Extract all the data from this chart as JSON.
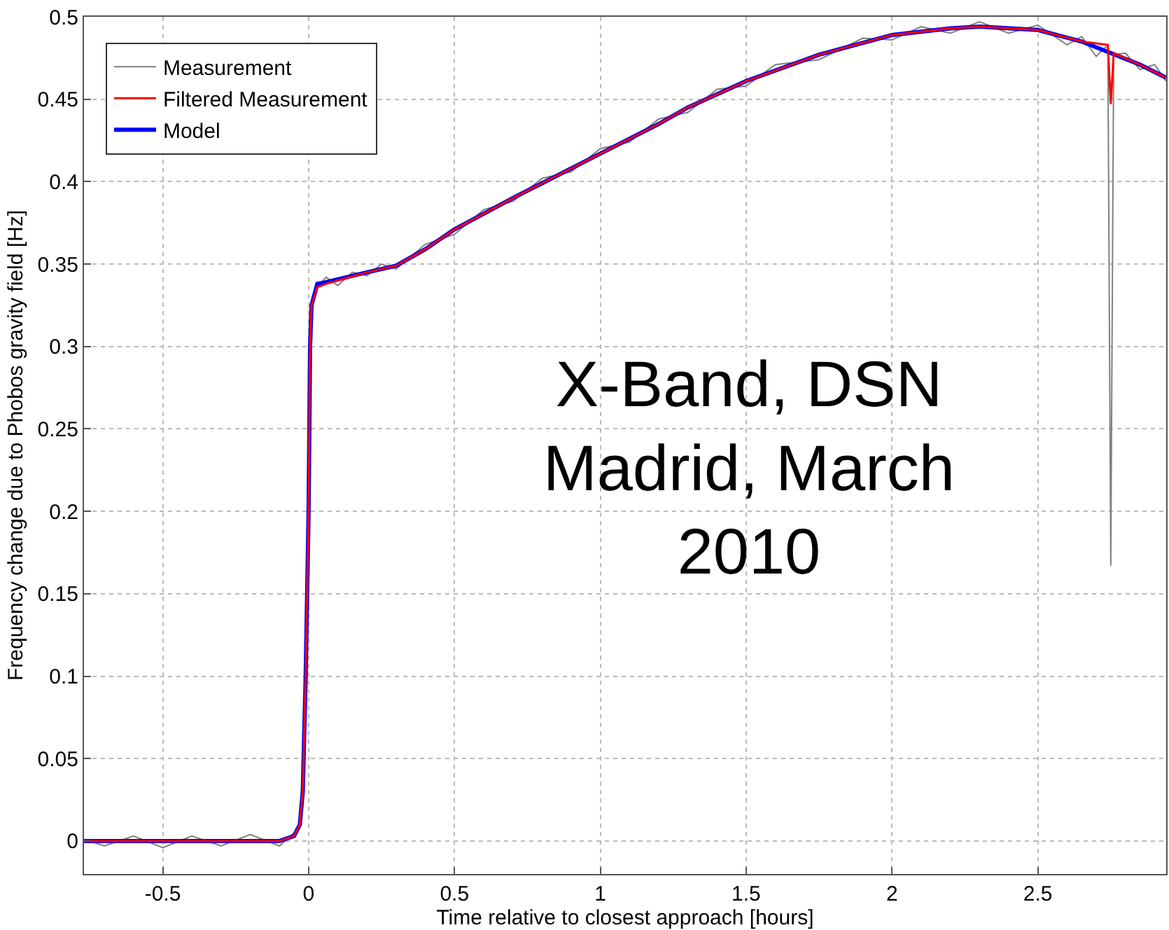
{
  "chart_data": {
    "type": "line",
    "xlabel": "Time relative to closest approach [hours]",
    "ylabel": "Frequency change due to Phobos gravity field [Hz]",
    "xlim": [
      -0.77,
      2.94
    ],
    "ylim": [
      -0.02,
      0.5
    ],
    "xticks": [
      -0.5,
      0,
      0.5,
      1,
      1.5,
      2,
      2.5
    ],
    "yticks": [
      0,
      0.05,
      0.1,
      0.15,
      0.2,
      0.25,
      0.3,
      0.35,
      0.4,
      0.45,
      0.5
    ],
    "grid": true,
    "legend": "top left",
    "line_style": "solid",
    "annotations": [
      "X-Band, DSN\nMadrid, March\n2010"
    ],
    "series": [
      {
        "name": "Measurement",
        "color": "#808080",
        "x": [
          -0.77,
          -0.7,
          -0.6,
          -0.5,
          -0.4,
          -0.3,
          -0.2,
          -0.1,
          -0.05,
          -0.03,
          -0.02,
          -0.01,
          0,
          0.005,
          0.01,
          0.03,
          0.06,
          0.1,
          0.15,
          0.2,
          0.25,
          0.3,
          0.4,
          0.5,
          0.6,
          0.7,
          0.8,
          0.9,
          1.0,
          1.1,
          1.2,
          1.3,
          1.4,
          1.5,
          1.6,
          1.75,
          1.9,
          2.0,
          2.1,
          2.2,
          2.3,
          2.4,
          2.5,
          2.6,
          2.65,
          2.7,
          2.74,
          2.75,
          2.76,
          2.8,
          2.85,
          2.9,
          2.94
        ],
        "values": [
          0.001,
          -0.003,
          0.003,
          -0.004,
          0.003,
          -0.003,
          0.004,
          -0.003,
          0.005,
          0.01,
          0.03,
          0.1,
          0.2,
          0.3,
          0.325,
          0.336,
          0.342,
          0.337,
          0.345,
          0.343,
          0.35,
          0.347,
          0.362,
          0.368,
          0.383,
          0.388,
          0.402,
          0.406,
          0.42,
          0.424,
          0.438,
          0.442,
          0.456,
          0.458,
          0.471,
          0.474,
          0.487,
          0.486,
          0.494,
          0.49,
          0.497,
          0.49,
          0.495,
          0.483,
          0.488,
          0.476,
          0.483,
          0.167,
          0.477,
          0.478,
          0.468,
          0.471,
          0.461
        ]
      },
      {
        "name": "Filtered Measurement",
        "color": "#ff0000",
        "x": [
          -0.77,
          -0.1,
          -0.05,
          -0.03,
          -0.02,
          -0.01,
          0,
          0.005,
          0.01,
          0.03,
          0.06,
          0.2,
          0.3,
          0.4,
          0.5,
          0.7,
          0.8,
          1.0,
          1.2,
          1.3,
          1.5,
          1.75,
          2.0,
          2.2,
          2.3,
          2.5,
          2.65,
          2.74,
          2.75,
          2.76,
          2.85,
          2.94
        ],
        "values": [
          0,
          0,
          0.003,
          0.01,
          0.03,
          0.1,
          0.2,
          0.3,
          0.325,
          0.336,
          0.338,
          0.345,
          0.349,
          0.359,
          0.371,
          0.39,
          0.399,
          0.417,
          0.435,
          0.445,
          0.461,
          0.477,
          0.489,
          0.493,
          0.494,
          0.492,
          0.485,
          0.483,
          0.447,
          0.478,
          0.471,
          0.463
        ]
      },
      {
        "name": "Model",
        "color": "#0000ff",
        "x": [
          -0.77,
          -0.1,
          -0.05,
          -0.03,
          -0.02,
          -0.01,
          0,
          0.005,
          0.01,
          0.03,
          0.06,
          0.2,
          0.3,
          0.4,
          0.5,
          0.7,
          0.8,
          1.0,
          1.2,
          1.3,
          1.5,
          1.75,
          2.0,
          2.2,
          2.3,
          2.5,
          2.65,
          2.75,
          2.85,
          2.94
        ],
        "values": [
          0,
          0,
          0.003,
          0.01,
          0.03,
          0.1,
          0.2,
          0.3,
          0.325,
          0.338,
          0.339,
          0.345,
          0.349,
          0.359,
          0.371,
          0.39,
          0.399,
          0.417,
          0.435,
          0.445,
          0.461,
          0.477,
          0.489,
          0.493,
          0.494,
          0.492,
          0.485,
          0.478,
          0.471,
          0.463
        ]
      }
    ]
  }
}
